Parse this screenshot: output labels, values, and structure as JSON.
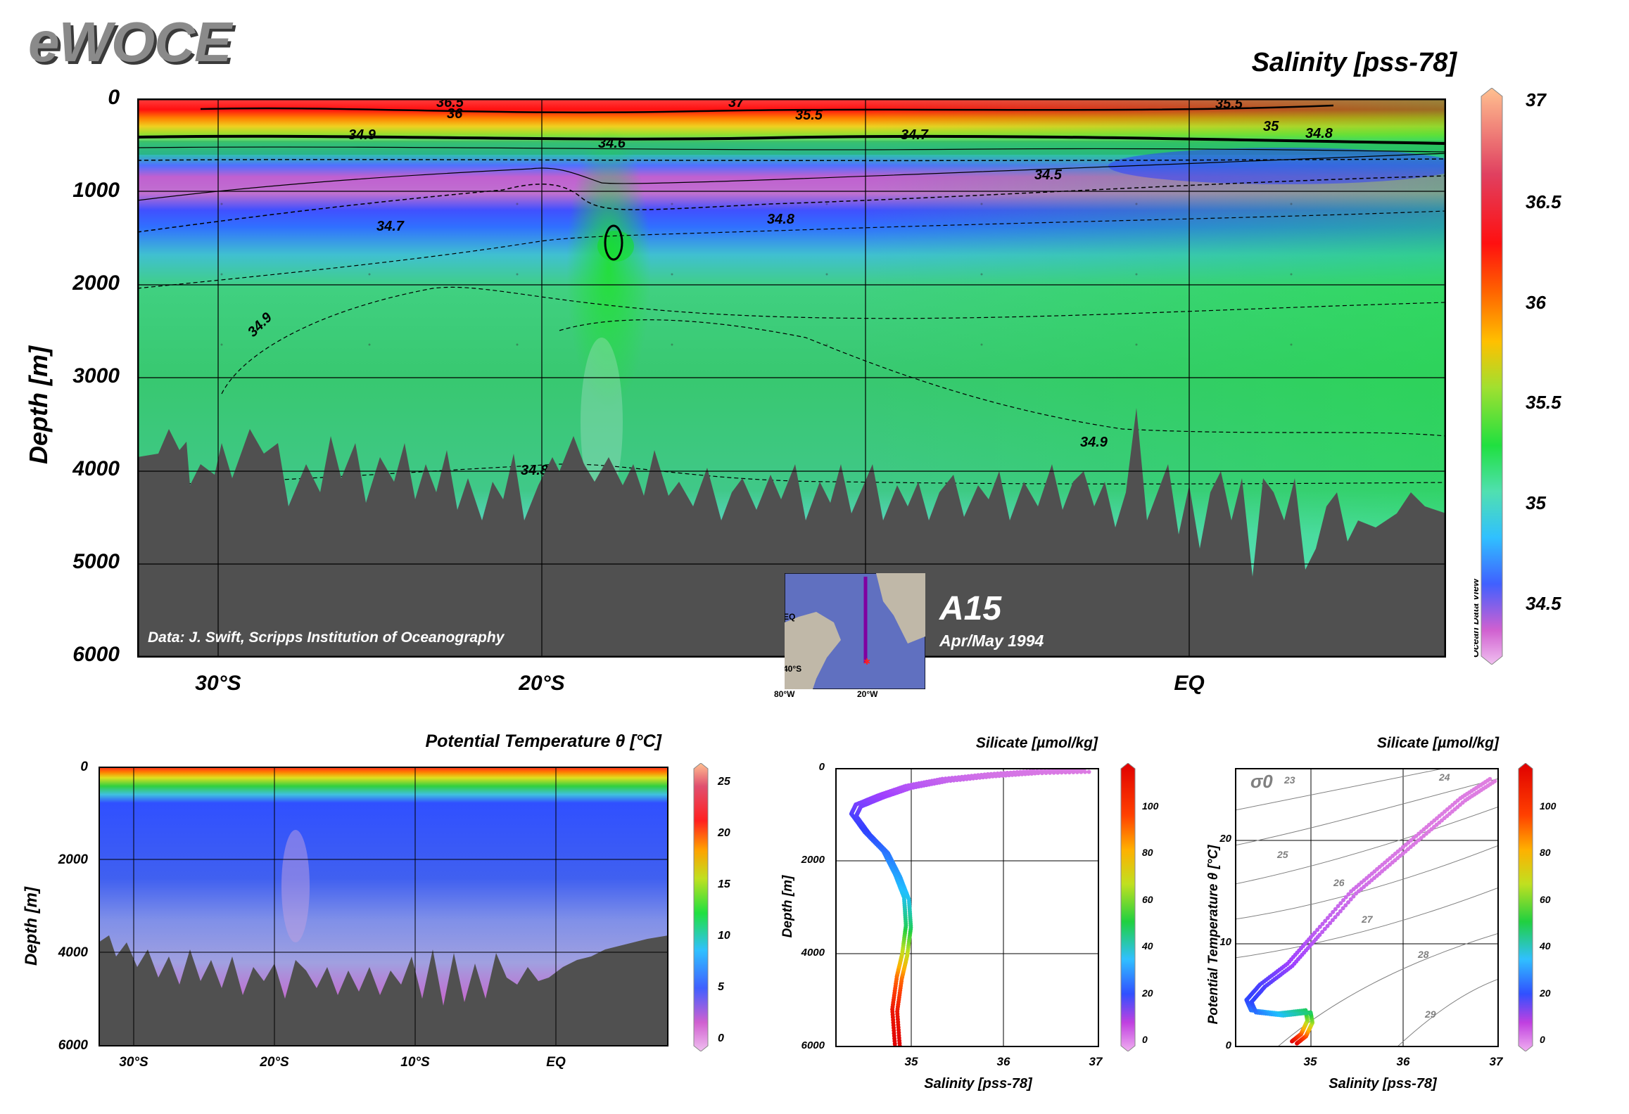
{
  "brand": "eWOCE",
  "section_label": "A15",
  "section_dates": "Apr/May 1994",
  "data_credit": "Data: J. Swift, Scripps Institution of Oceanography",
  "odv_label": "Ocean Data View",
  "inset_map": {
    "lat_tick_labels": [
      "EQ",
      "40°S"
    ],
    "lon_tick_labels": [
      "80°W",
      "20°W"
    ]
  },
  "colors": {
    "land_bathymetry": "#505050",
    "salinity_scale": [
      "#e0a0e8",
      "#d060d0",
      "#4060ff",
      "#30c0ff",
      "#50e0c0",
      "#20e040",
      "#c0e030",
      "#ffc000",
      "#ff6000",
      "#ff1010",
      "#ffb080"
    ],
    "silicate_scale": [
      "#e080e0",
      "#a040ff",
      "#3040ff",
      "#20c0ff",
      "#20d040",
      "#c0e020",
      "#ffb000",
      "#ff4000",
      "#e00000"
    ]
  },
  "chart_data": [
    {
      "type": "heatmap",
      "title": "Salinity [pss-78]",
      "ylabel": "Depth [m]",
      "xlabel": "",
      "x_tick_labels": [
        "30°S",
        "20°S",
        "EQ"
      ],
      "y_tick_labels": [
        "0",
        "1000",
        "2000",
        "3000",
        "4000",
        "5000",
        "6000"
      ],
      "ylim": [
        6000,
        0
      ],
      "colorbar": {
        "label": "",
        "ticks": [
          34.5,
          35,
          35.5,
          36,
          36.5,
          37
        ],
        "range": [
          34.3,
          37.1
        ]
      },
      "contour_labels": [
        "36.5",
        "36",
        "37",
        "35.5",
        "35.5",
        "35",
        "34.9",
        "34.6",
        "34.7",
        "34.8",
        "34.5",
        "34.7",
        "34.8",
        "34.9",
        "34.9",
        "34.8"
      ],
      "grid": true
    },
    {
      "type": "heatmap",
      "title": "Potential Temperature θ [°C]",
      "ylabel": "Depth [m]",
      "xlabel": "",
      "x_tick_labels": [
        "30°S",
        "20°S",
        "10°S",
        "EQ"
      ],
      "y_tick_labels": [
        "0",
        "2000",
        "4000",
        "6000"
      ],
      "ylim": [
        6000,
        0
      ],
      "colorbar": {
        "label": "",
        "ticks": [
          0,
          5,
          10,
          15,
          20,
          25
        ],
        "range": [
          0,
          27
        ]
      },
      "grid": true
    },
    {
      "type": "scatter",
      "title": "Silicate [µmol/kg]",
      "xlabel": "Salinity [pss-78]",
      "ylabel": "Depth [m]",
      "x_tick_labels": [
        "35",
        "36",
        "37"
      ],
      "y_tick_labels": [
        "0",
        "2000",
        "4000",
        "6000"
      ],
      "xlim": [
        34.1,
        37
      ],
      "ylim": [
        6000,
        0
      ],
      "colorbar": {
        "label": "",
        "ticks": [
          0,
          20,
          40,
          60,
          80,
          100
        ],
        "range": [
          0,
          115
        ]
      },
      "profile": [
        {
          "x": 34.78,
          "y": 6000,
          "c": 115
        },
        {
          "x": 34.75,
          "y": 5200,
          "c": 110
        },
        {
          "x": 34.8,
          "y": 4500,
          "c": 95
        },
        {
          "x": 34.86,
          "y": 4000,
          "c": 75
        },
        {
          "x": 34.9,
          "y": 3400,
          "c": 55
        },
        {
          "x": 34.88,
          "y": 2800,
          "c": 45
        },
        {
          "x": 34.78,
          "y": 2300,
          "c": 40
        },
        {
          "x": 34.65,
          "y": 1800,
          "c": 35
        },
        {
          "x": 34.45,
          "y": 1400,
          "c": 30
        },
        {
          "x": 34.3,
          "y": 1000,
          "c": 25
        },
        {
          "x": 34.35,
          "y": 800,
          "c": 20
        },
        {
          "x": 34.6,
          "y": 600,
          "c": 15
        },
        {
          "x": 34.9,
          "y": 400,
          "c": 10
        },
        {
          "x": 35.3,
          "y": 250,
          "c": 6
        },
        {
          "x": 35.8,
          "y": 150,
          "c": 3
        },
        {
          "x": 36.3,
          "y": 80,
          "c": 2
        },
        {
          "x": 36.9,
          "y": 50,
          "c": 1
        }
      ]
    },
    {
      "type": "scatter",
      "title": "Silicate [µmol/kg]",
      "xlabel": "Salinity [pss-78]",
      "ylabel": "Potential Temperature θ [°C]",
      "x_tick_labels": [
        "35",
        "36",
        "37"
      ],
      "y_tick_labels": [
        "0",
        "10",
        "20"
      ],
      "xlim": [
        34.1,
        37
      ],
      "ylim": [
        0,
        27
      ],
      "colorbar": {
        "label": "",
        "ticks": [
          0,
          20,
          40,
          60,
          80,
          100
        ],
        "range": [
          0,
          115
        ]
      },
      "isopycnal_symbol": "σ0",
      "isopycnal_labels": [
        "23",
        "24",
        "25",
        "26",
        "27",
        "28",
        "29"
      ],
      "profile": [
        {
          "x": 34.75,
          "y": 0.5,
          "c": 115
        },
        {
          "x": 34.85,
          "y": 1.2,
          "c": 100
        },
        {
          "x": 34.92,
          "y": 2.5,
          "c": 70
        },
        {
          "x": 34.9,
          "y": 3.5,
          "c": 55
        },
        {
          "x": 34.6,
          "y": 3.2,
          "c": 45
        },
        {
          "x": 34.3,
          "y": 3.5,
          "c": 35
        },
        {
          "x": 34.25,
          "y": 4.5,
          "c": 30
        },
        {
          "x": 34.4,
          "y": 6,
          "c": 25
        },
        {
          "x": 34.7,
          "y": 8,
          "c": 15
        },
        {
          "x": 35.0,
          "y": 11,
          "c": 8
        },
        {
          "x": 35.4,
          "y": 15,
          "c": 4
        },
        {
          "x": 35.8,
          "y": 18,
          "c": 2
        },
        {
          "x": 36.2,
          "y": 21,
          "c": 1
        },
        {
          "x": 36.6,
          "y": 24,
          "c": 1
        },
        {
          "x": 36.95,
          "y": 26,
          "c": 0
        }
      ]
    }
  ]
}
